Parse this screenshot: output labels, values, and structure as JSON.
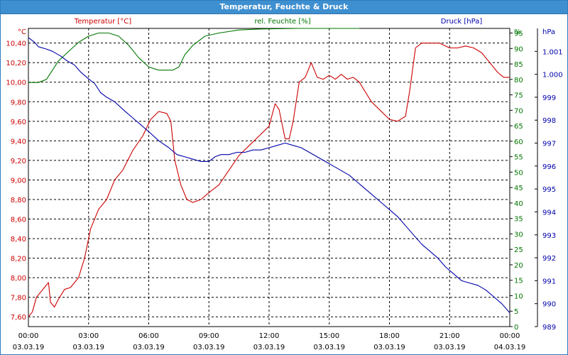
{
  "window": {
    "title": "Temperatur, Feuchte & Druck"
  },
  "chart_data": {
    "type": "line",
    "title": "Temperatur, Feuchte & Druck",
    "legend": {
      "temperature": "Temperatur [°C]",
      "humidity": "rel. Feuchte [%]",
      "pressure": "Druck [hPa]"
    },
    "axes": {
      "temperature": {
        "unit": "°C",
        "min": 7.5,
        "max": 10.55,
        "ticks": [
          "10,40",
          "10,20",
          "10,00",
          "9,80",
          "9,60",
          "9,40",
          "9,20",
          "9,00",
          "8,80",
          "8,60",
          "8,40",
          "8,20",
          "8,00",
          "7,80",
          "7,60"
        ],
        "color": "#cc0000"
      },
      "humidity": {
        "unit": "%",
        "min": 0,
        "max": 96.5,
        "ticks": [
          "95",
          "90",
          "85",
          "80",
          "75",
          "70",
          "65",
          "60",
          "55",
          "50",
          "45",
          "40",
          "35",
          "30",
          "25",
          "20",
          "15",
          "10",
          "5",
          "0"
        ],
        "color": "#007700"
      },
      "pressure": {
        "unit": "hPa",
        "min": 989,
        "max": 1002,
        "ticks": [
          "1.001",
          "1.000",
          "999",
          "998",
          "997",
          "996",
          "995",
          "994",
          "993",
          "992",
          "991",
          "990",
          "989"
        ],
        "color": "#0000aa"
      },
      "time": {
        "times": [
          "00:00",
          "03:00",
          "06:00",
          "09:00",
          "12:00",
          "15:00",
          "18:00",
          "21:00",
          "00:00"
        ],
        "dates": [
          "03.03.19",
          "03.03.19",
          "03.03.19",
          "03.03.19",
          "03.03.19",
          "03.03.19",
          "03.03.19",
          "03.03.19",
          "04.03.19"
        ],
        "min_hours": 0,
        "max_hours": 24
      }
    },
    "grid": true,
    "series": [
      {
        "name": "Temperatur [°C]",
        "color": "#cc0000",
        "x_hours": [
          0,
          0.2,
          0.4,
          0.8,
          1.0,
          1.1,
          1.3,
          1.5,
          1.8,
          2.1,
          2.5,
          2.8,
          3.1,
          3.5,
          3.9,
          4.3,
          4.7,
          5.2,
          5.7,
          6.1,
          6.5,
          6.9,
          7.1,
          7.3,
          7.6,
          7.9,
          8.2,
          8.6,
          9.0,
          9.5,
          10.0,
          10.5,
          11.0,
          11.5,
          12.0,
          12.3,
          12.5,
          12.8,
          13.0,
          13.2,
          13.5,
          13.8,
          14.1,
          14.4,
          14.7,
          15.0,
          15.3,
          15.6,
          15.9,
          16.2,
          16.5,
          16.8,
          17.1,
          17.5,
          18.0,
          18.4,
          18.8,
          19.0,
          19.3,
          19.6,
          19.8,
          20.0,
          20.5,
          21.0,
          21.4,
          21.8,
          22.2,
          22.6,
          23.0,
          23.4,
          23.7,
          24.0
        ],
        "values": [
          7.6,
          7.65,
          7.8,
          7.9,
          7.95,
          7.75,
          7.7,
          7.78,
          7.88,
          7.9,
          8.0,
          8.2,
          8.5,
          8.7,
          8.8,
          9.0,
          9.1,
          9.3,
          9.45,
          9.62,
          9.7,
          9.68,
          9.6,
          9.2,
          8.95,
          8.8,
          8.77,
          8.8,
          8.87,
          8.95,
          9.1,
          9.25,
          9.35,
          9.45,
          9.55,
          9.78,
          9.72,
          9.42,
          9.42,
          9.6,
          10.0,
          10.05,
          10.2,
          10.05,
          10.03,
          10.07,
          10.03,
          10.08,
          10.03,
          10.05,
          10.0,
          9.9,
          9.8,
          9.72,
          9.62,
          9.6,
          9.65,
          9.9,
          10.35,
          10.4,
          10.4,
          10.4,
          10.4,
          10.35,
          10.35,
          10.37,
          10.35,
          10.3,
          10.2,
          10.1,
          10.05,
          10.05
        ]
      },
      {
        "name": "rel. Feuchte [%]",
        "color": "#007700",
        "x_hours": [
          0,
          0.5,
          0.9,
          1.1,
          1.5,
          2.0,
          2.5,
          3.0,
          3.5,
          4.0,
          4.5,
          5.0,
          5.5,
          6.0,
          6.5,
          7.0,
          7.2,
          7.5,
          7.8,
          8.2,
          8.8,
          9.5,
          10.5,
          11.5,
          12.5,
          13.5,
          14.5,
          15.5,
          16.5
        ],
        "values": [
          79,
          79,
          80,
          82,
          86,
          89,
          92,
          94,
          95,
          95,
          94,
          91,
          87,
          84,
          83,
          83,
          83,
          84,
          88,
          91,
          94,
          95,
          96,
          96.3,
          96.4,
          96.5,
          96.5,
          96.5,
          96.5
        ]
      },
      {
        "name": "Druck [hPa]",
        "color": "#0000aa",
        "x_hours": [
          0,
          0.3,
          0.5,
          0.9,
          1.2,
          1.6,
          1.9,
          2.3,
          2.6,
          3.0,
          3.3,
          3.6,
          3.9,
          4.3,
          4.8,
          5.2,
          5.6,
          6.0,
          6.5,
          7.0,
          7.4,
          7.8,
          8.2,
          8.6,
          9.0,
          9.3,
          9.6,
          10.0,
          10.4,
          10.8,
          11.2,
          11.6,
          12.0,
          12.4,
          12.8,
          13.2,
          13.6,
          14.0,
          14.4,
          14.8,
          15.2,
          15.6,
          16.0,
          16.4,
          16.8,
          17.2,
          17.6,
          18.0,
          18.4,
          18.8,
          19.2,
          19.6,
          20.0,
          20.4,
          20.8,
          21.2,
          21.6,
          22.0,
          22.4,
          22.8,
          23.2,
          23.6,
          24.0
        ],
        "values": [
          1001.6,
          1001.4,
          1001.2,
          1001.1,
          1001.0,
          1000.8,
          1000.6,
          1000.4,
          1000.1,
          999.8,
          999.6,
          999.2,
          999.0,
          998.8,
          998.4,
          998.1,
          997.8,
          997.5,
          997.1,
          996.8,
          996.5,
          996.4,
          996.3,
          996.2,
          996.2,
          996.4,
          996.5,
          996.5,
          996.6,
          996.6,
          996.7,
          996.7,
          996.8,
          996.9,
          997.0,
          996.9,
          996.8,
          996.6,
          996.4,
          996.2,
          996.0,
          995.8,
          995.6,
          995.3,
          995.0,
          994.7,
          994.4,
          994.1,
          993.8,
          993.4,
          993.0,
          992.6,
          992.3,
          992.0,
          991.6,
          991.3,
          991.0,
          990.9,
          990.8,
          990.6,
          990.3,
          990.0,
          989.6
        ]
      }
    ]
  }
}
